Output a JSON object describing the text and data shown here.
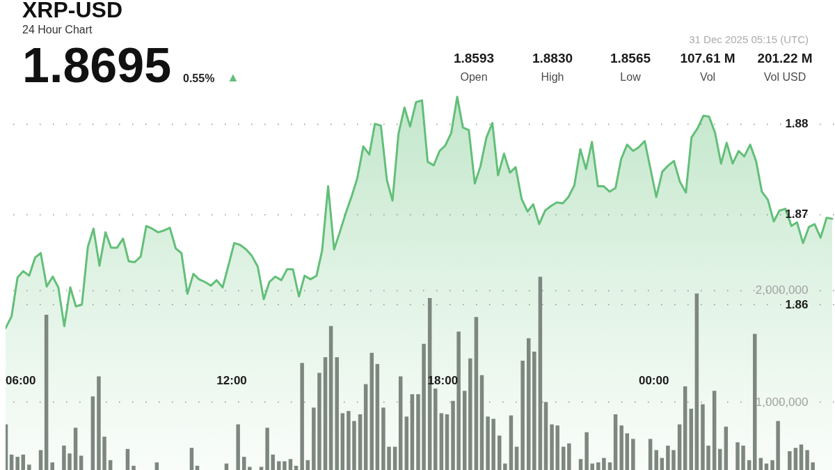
{
  "chart_data": {
    "type": "area",
    "title": "XRP-USD",
    "subtitle": "24 Hour Chart",
    "annotations": [
      "1.8695",
      "0.55%",
      "▲",
      "31 Dec 2025 05:15 (UTC)",
      "1.8593",
      "Open",
      "1.8830",
      "High",
      "1.8565",
      "Low",
      "107.61 M",
      "Vol",
      "201.22 M",
      "Vol USD"
    ],
    "x": [
      5.58,
      5.75,
      5.92,
      6.08,
      6.25,
      6.42,
      6.58,
      6.75,
      6.92,
      7.08,
      7.25,
      7.42,
      7.58,
      7.75,
      7.92,
      8.08,
      8.25,
      8.42,
      8.58,
      8.75,
      8.92,
      9.08,
      9.25,
      9.42,
      9.58,
      9.75,
      9.92,
      10.08,
      10.25,
      10.42,
      10.58,
      10.75,
      10.92,
      11.08,
      11.25,
      11.42,
      11.58,
      11.75,
      11.92,
      12.08,
      12.25,
      12.42,
      12.58,
      12.75,
      12.92,
      13.08,
      13.25,
      13.42,
      13.58,
      13.75,
      13.92,
      14.08,
      14.25,
      14.42,
      14.58,
      14.75,
      14.92,
      15.08,
      15.25,
      15.42,
      15.58,
      15.75,
      15.92,
      16.08,
      16.25,
      16.42,
      16.58,
      16.75,
      16.92,
      17.08,
      17.25,
      17.42,
      17.58,
      17.75,
      17.92,
      18.08,
      18.25,
      18.42,
      18.58,
      18.75,
      18.92,
      19.08,
      19.25,
      19.42,
      19.58,
      19.75,
      19.92,
      20.08,
      20.25,
      20.42,
      20.58,
      20.75,
      20.92,
      21.08,
      21.25,
      21.42,
      21.58,
      21.75,
      21.92,
      22.08,
      22.25,
      22.42,
      22.58,
      22.75,
      22.92,
      23.08,
      23.25,
      23.42,
      23.58,
      23.75,
      23.92,
      24.08,
      24.25,
      24.42,
      24.58,
      24.75,
      24.92,
      25.08,
      25.25,
      25.42,
      25.58,
      25.75,
      25.92,
      26.08,
      26.25,
      26.42,
      26.58,
      26.75,
      26.92,
      27.08,
      27.25,
      27.42,
      27.58,
      27.75,
      27.92,
      28.08,
      28.25,
      28.42,
      28.58,
      28.75,
      28.92,
      29.08
    ],
    "xlim": [
      5.58,
      29.12
    ],
    "xticks": [
      {
        "value": 6,
        "label": "06:00"
      },
      {
        "value": 12,
        "label": "12:00"
      },
      {
        "value": 18,
        "label": "18:00"
      },
      {
        "value": 24,
        "label": "00:00"
      }
    ],
    "ylim": [
      1.8417,
      1.8937
    ],
    "yticks": [
      1.86,
      1.87,
      1.88
    ],
    "y2lim": [
      392000,
      4595000
    ],
    "y2ticks": [
      {
        "value": 1000000,
        "label": "1,000,000"
      },
      {
        "value": 2000000,
        "label": "2,000,000"
      }
    ],
    "grid": "y",
    "series": [
      {
        "color": "#62bf78",
        "values": [
          1.8574,
          1.8587,
          1.863,
          1.8637,
          1.8632,
          1.8652,
          1.8657,
          1.862,
          1.8631,
          1.8619,
          1.8576,
          1.8619,
          1.8598,
          1.86,
          1.8664,
          1.8684,
          1.8643,
          1.868,
          1.8663,
          1.8663,
          1.8673,
          1.8648,
          1.8647,
          1.8653,
          1.8687,
          1.8684,
          1.868,
          1.8682,
          1.8685,
          1.8662,
          1.8657,
          1.8612,
          1.8634,
          1.8628,
          1.8625,
          1.8621,
          1.8627,
          1.8619,
          1.8644,
          1.8668,
          1.8666,
          1.8661,
          1.8654,
          1.8642,
          1.8606,
          1.8625,
          1.8631,
          1.8627,
          1.8639,
          1.8639,
          1.8609,
          1.8632,
          1.8628,
          1.8632,
          1.866,
          1.8731,
          1.8661,
          1.868,
          1.8701,
          1.872,
          1.874,
          1.8775,
          1.8766,
          1.88,
          1.8798,
          1.8738,
          1.8715,
          1.8789,
          1.8818,
          1.8797,
          1.8824,
          1.8826,
          1.8758,
          1.8754,
          1.877,
          1.8776,
          1.879,
          1.883,
          1.8796,
          1.8793,
          1.8734,
          1.8753,
          1.8785,
          1.8801,
          1.8743,
          1.8767,
          1.8746,
          1.8752,
          1.8717,
          1.8703,
          1.8711,
          1.8689,
          1.8704,
          1.8709,
          1.8713,
          1.8712,
          1.8719,
          1.8732,
          1.8772,
          1.875,
          1.878,
          1.8731,
          1.8731,
          1.8725,
          1.8729,
          1.8761,
          1.8777,
          1.877,
          1.8774,
          1.8781,
          1.8749,
          1.8719,
          1.8747,
          1.8754,
          1.8759,
          1.8736,
          1.8724,
          1.8785,
          1.8795,
          1.8809,
          1.8808,
          1.879,
          1.8756,
          1.8779,
          1.8756,
          1.877,
          1.8764,
          1.8777,
          1.8758,
          1.8725,
          1.8716,
          1.8692,
          1.8704,
          1.8706,
          1.8687,
          1.8691,
          1.8668,
          1.8686,
          1.8689,
          1.8674,
          1.8696,
          1.8695
        ]
      },
      {
        "type": "bar",
        "axis": "y2",
        "color": "#7d877f",
        "x": [
          5.59,
          5.75,
          5.92,
          6.08,
          6.25,
          6.41,
          6.58,
          6.74,
          6.91,
          7.07,
          7.24,
          7.4,
          7.57,
          7.73,
          7.9,
          8.06,
          8.23,
          8.39,
          8.56,
          8.72,
          8.89,
          9.05,
          9.22,
          9.38,
          9.55,
          9.71,
          9.88,
          10.04,
          10.21,
          10.37,
          10.54,
          10.7,
          10.87,
          11.03,
          11.2,
          11.37,
          11.53,
          11.7,
          11.86,
          12.03,
          12.19,
          12.36,
          12.52,
          12.69,
          12.85,
          13.02,
          13.18,
          13.35,
          13.51,
          13.68,
          13.84,
          14.01,
          14.17,
          14.34,
          14.5,
          14.67,
          14.83,
          15.0,
          15.16,
          15.33,
          15.49,
          15.66,
          15.82,
          15.99,
          16.15,
          16.32,
          16.48,
          16.65,
          16.81,
          16.98,
          17.14,
          17.31,
          17.47,
          17.64,
          17.8,
          17.97,
          18.13,
          18.3,
          18.46,
          18.63,
          18.79,
          18.96,
          19.12,
          19.29,
          19.45,
          19.62,
          19.78,
          19.95,
          20.11,
          20.28,
          20.45,
          20.61,
          20.78,
          20.94,
          21.11,
          21.27,
          21.44,
          21.6,
          21.77,
          21.93,
          22.1,
          22.26,
          22.43,
          22.59,
          22.76,
          22.92,
          23.09,
          23.25,
          23.42,
          23.58,
          23.75,
          23.91,
          24.08,
          24.24,
          24.41,
          24.57,
          24.74,
          24.9,
          25.07,
          25.23,
          25.4,
          25.56,
          25.73,
          25.89,
          26.06,
          26.22,
          26.39,
          26.55,
          26.72,
          26.88,
          27.05,
          27.21,
          27.38,
          27.54,
          27.71,
          27.87,
          28.04,
          28.2,
          28.37,
          28.53
        ],
        "values": [
          800000,
          530000,
          510000,
          530000,
          440000,
          null,
          570000,
          1780000,
          460000,
          null,
          610000,
          540000,
          770000,
          520000,
          null,
          1050000,
          1230000,
          690000,
          480000,
          null,
          null,
          580000,
          430000,
          null,
          null,
          null,
          460000,
          null,
          null,
          null,
          null,
          null,
          590000,
          430000,
          null,
          null,
          null,
          null,
          450000,
          null,
          800000,
          510000,
          420000,
          null,
          420000,
          770000,
          530000,
          470000,
          470000,
          490000,
          430000,
          1350000,
          480000,
          950000,
          1260000,
          1400000,
          1680000,
          1400000,
          900000,
          920000,
          830000,
          890000,
          1160000,
          1440000,
          1340000,
          950000,
          600000,
          600000,
          1230000,
          870000,
          1070000,
          1070000,
          1520000,
          1930000,
          1120000,
          900000,
          890000,
          1010000,
          1630000,
          1100000,
          1390000,
          1760000,
          1240000,
          870000,
          850000,
          700000,
          450000,
          880000,
          600000,
          1370000,
          1570000,
          1450000,
          2120000,
          1000000,
          800000,
          790000,
          600000,
          630000,
          null,
          490000,
          730000,
          450000,
          460000,
          500000,
          460000,
          890000,
          790000,
          720000,
          670000,
          null,
          null,
          670000,
          570000,
          500000,
          610000,
          570000,
          800000,
          1140000,
          940000,
          1970000,
          980000,
          610000,
          1100000,
          580000,
          780000,
          null,
          640000,
          610000,
          480000,
          1610000,
          500000,
          450000,
          480000,
          830000,
          null,
          560000,
          590000,
          620000,
          570000,
          460000
        ]
      }
    ]
  }
}
